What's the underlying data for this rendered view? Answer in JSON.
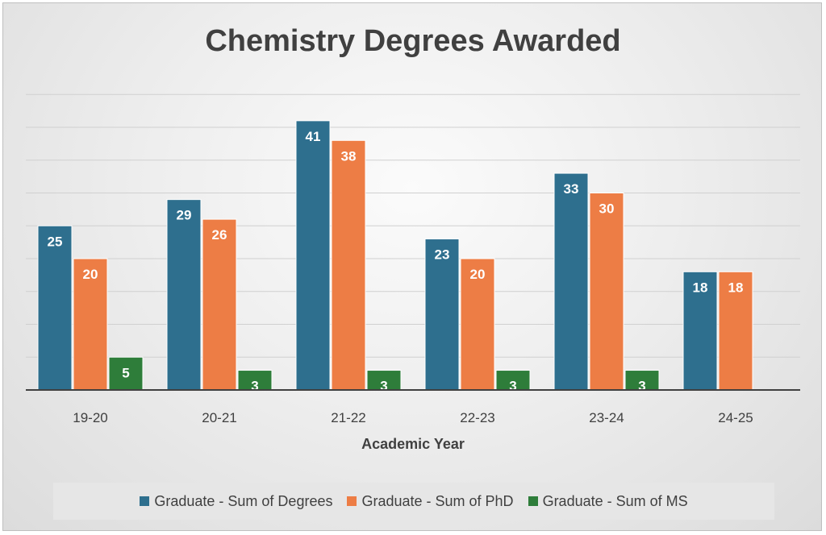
{
  "chart_data": {
    "type": "bar",
    "title": "Chemistry Degrees Awarded",
    "xlabel": "Academic Year",
    "ylabel": "",
    "categories": [
      "19-20",
      "20-21",
      "21-22",
      "22-23",
      "23-24",
      "24-25"
    ],
    "series": [
      {
        "name": "Graduate - Sum of Degrees",
        "color": "#2e6f8e",
        "values": [
          25,
          29,
          41,
          23,
          33,
          18
        ]
      },
      {
        "name": "Graduate - Sum of PhD",
        "color": "#ed7d45",
        "values": [
          20,
          26,
          38,
          20,
          30,
          18
        ]
      },
      {
        "name": "Graduate - Sum of MS",
        "color": "#2e7d3a",
        "values": [
          5,
          3,
          3,
          3,
          3,
          null
        ]
      }
    ],
    "ylim": [
      0,
      45
    ],
    "grid": true,
    "legend_position": "bottom"
  }
}
